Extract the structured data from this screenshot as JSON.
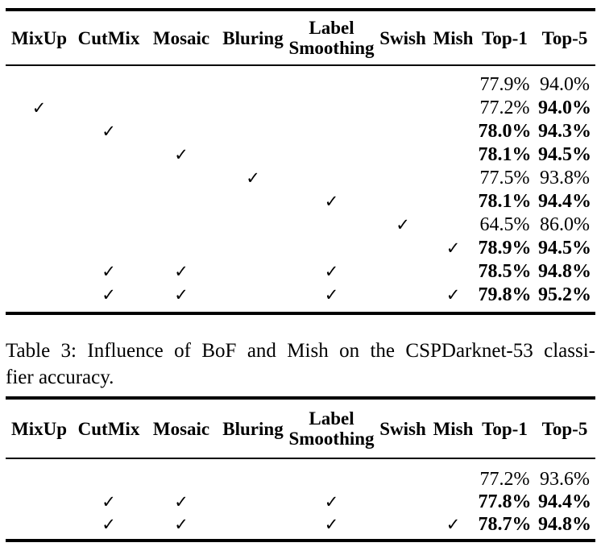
{
  "page": {
    "background": "#ffffff",
    "text_color": "#000000"
  },
  "check_glyph": "✓",
  "caption": {
    "line1": "Table 3: Influence of BoF and Mish on the CSPDarknet-53 classi-",
    "line2": "fier accuracy."
  },
  "tables": [
    {
      "name": "ablation-table-top",
      "headers": [
        {
          "lines": [
            "MixUp"
          ]
        },
        {
          "lines": [
            "CutMix"
          ]
        },
        {
          "lines": [
            "Mosaic"
          ]
        },
        {
          "lines": [
            "Bluring"
          ]
        },
        {
          "lines": [
            "Label",
            "Smoothing"
          ]
        },
        {
          "lines": [
            "Swish"
          ]
        },
        {
          "lines": [
            "Mish"
          ]
        },
        {
          "lines": [
            "Top-1"
          ]
        },
        {
          "lines": [
            "Top-5"
          ]
        }
      ],
      "rows": [
        {
          "checks": [
            0,
            0,
            0,
            0,
            0,
            0,
            0
          ],
          "top1": {
            "text": "77.9%",
            "bold": false
          },
          "top5": {
            "text": "94.0%",
            "bold": false
          }
        },
        {
          "checks": [
            1,
            0,
            0,
            0,
            0,
            0,
            0
          ],
          "top1": {
            "text": "77.2%",
            "bold": false
          },
          "top5": {
            "text": "94.0%",
            "bold": true
          }
        },
        {
          "checks": [
            0,
            1,
            0,
            0,
            0,
            0,
            0
          ],
          "top1": {
            "text": "78.0%",
            "bold": true
          },
          "top5": {
            "text": "94.3%",
            "bold": true
          }
        },
        {
          "checks": [
            0,
            0,
            1,
            0,
            0,
            0,
            0
          ],
          "top1": {
            "text": "78.1%",
            "bold": true
          },
          "top5": {
            "text": "94.5%",
            "bold": true
          }
        },
        {
          "checks": [
            0,
            0,
            0,
            1,
            0,
            0,
            0
          ],
          "top1": {
            "text": "77.5%",
            "bold": false
          },
          "top5": {
            "text": "93.8%",
            "bold": false
          }
        },
        {
          "checks": [
            0,
            0,
            0,
            0,
            1,
            0,
            0
          ],
          "top1": {
            "text": "78.1%",
            "bold": true
          },
          "top5": {
            "text": "94.4%",
            "bold": true
          }
        },
        {
          "checks": [
            0,
            0,
            0,
            0,
            0,
            1,
            0
          ],
          "top1": {
            "text": "64.5%",
            "bold": false
          },
          "top5": {
            "text": "86.0%",
            "bold": false
          }
        },
        {
          "checks": [
            0,
            0,
            0,
            0,
            0,
            0,
            1
          ],
          "top1": {
            "text": "78.9%",
            "bold": true
          },
          "top5": {
            "text": "94.5%",
            "bold": true
          }
        },
        {
          "checks": [
            0,
            1,
            1,
            0,
            1,
            0,
            0
          ],
          "top1": {
            "text": "78.5%",
            "bold": true
          },
          "top5": {
            "text": "94.8%",
            "bold": true
          }
        },
        {
          "checks": [
            0,
            1,
            1,
            0,
            1,
            0,
            1
          ],
          "top1": {
            "text": "79.8%",
            "bold": true
          },
          "top5": {
            "text": "95.2%",
            "bold": true
          }
        }
      ]
    },
    {
      "name": "ablation-table-bottom",
      "headers": [
        {
          "lines": [
            "MixUp"
          ]
        },
        {
          "lines": [
            "CutMix"
          ]
        },
        {
          "lines": [
            "Mosaic"
          ]
        },
        {
          "lines": [
            "Bluring"
          ]
        },
        {
          "lines": [
            "Label",
            "Smoothing"
          ]
        },
        {
          "lines": [
            "Swish"
          ]
        },
        {
          "lines": [
            "Mish"
          ]
        },
        {
          "lines": [
            "Top-1"
          ]
        },
        {
          "lines": [
            "Top-5"
          ]
        }
      ],
      "rows": [
        {
          "checks": [
            0,
            0,
            0,
            0,
            0,
            0,
            0
          ],
          "top1": {
            "text": "77.2%",
            "bold": false
          },
          "top5": {
            "text": "93.6%",
            "bold": false
          }
        },
        {
          "checks": [
            0,
            1,
            1,
            0,
            1,
            0,
            0
          ],
          "top1": {
            "text": "77.8%",
            "bold": true
          },
          "top5": {
            "text": "94.4%",
            "bold": true
          }
        },
        {
          "checks": [
            0,
            1,
            1,
            0,
            1,
            0,
            1
          ],
          "top1": {
            "text": "78.7%",
            "bold": true
          },
          "top5": {
            "text": "94.8%",
            "bold": true
          }
        }
      ]
    }
  ]
}
